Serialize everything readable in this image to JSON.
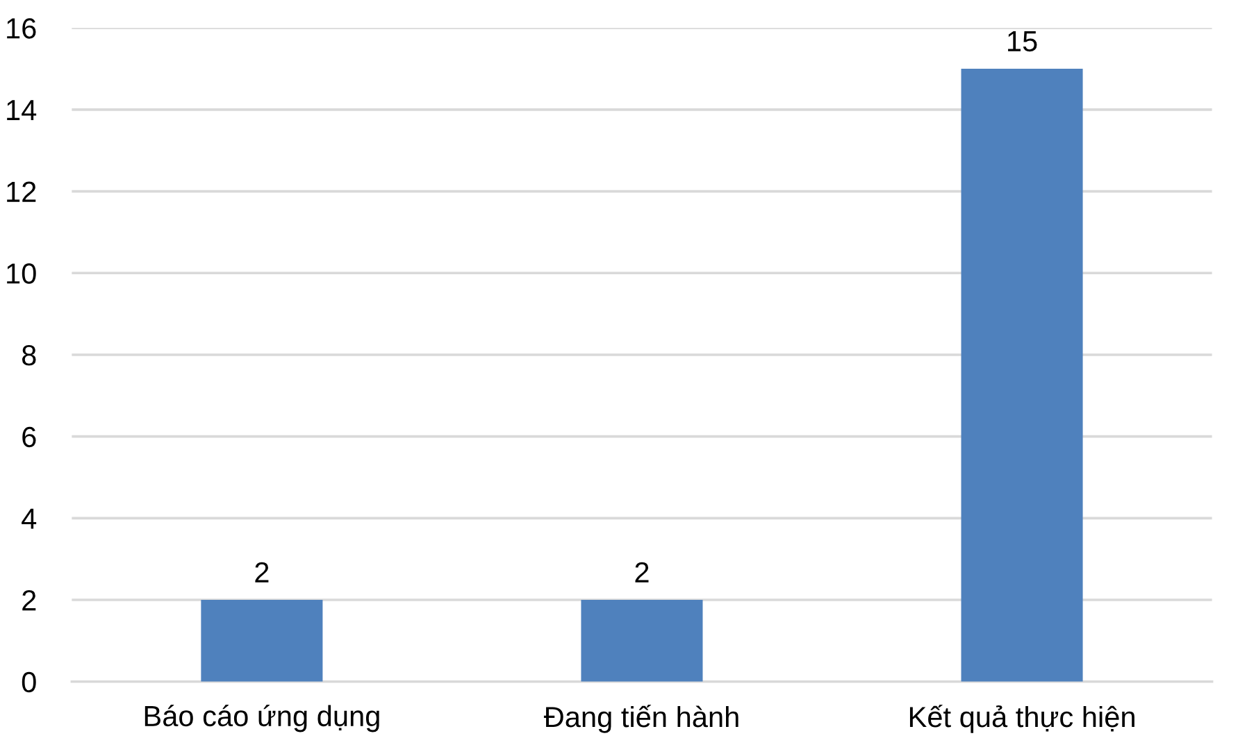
{
  "chart_data": {
    "type": "bar",
    "categories": [
      "Báo cáo ứng dụng",
      "Đang tiến hành",
      "Kết quả thực hiện"
    ],
    "values": [
      2,
      2,
      15
    ],
    "color": "#4f81bd",
    "ylim": [
      0,
      16
    ],
    "yticks": [
      0,
      2,
      4,
      6,
      8,
      10,
      12,
      14,
      16
    ],
    "grid": "y",
    "data_labels": true
  }
}
